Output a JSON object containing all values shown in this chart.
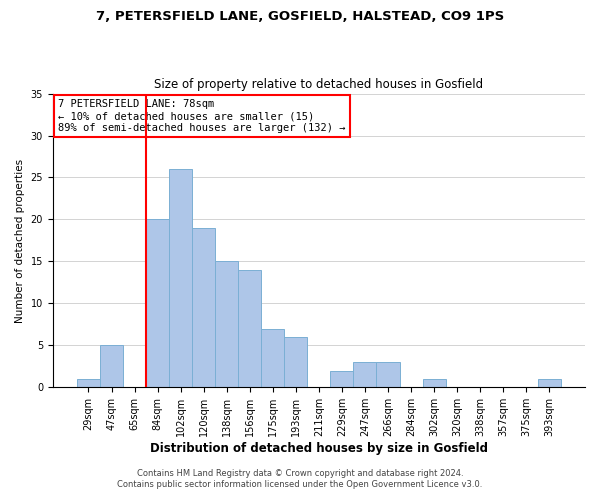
{
  "title1": "7, PETERSFIELD LANE, GOSFIELD, HALSTEAD, CO9 1PS",
  "title2": "Size of property relative to detached houses in Gosfield",
  "xlabel": "Distribution of detached houses by size in Gosfield",
  "ylabel": "Number of detached properties",
  "bar_labels": [
    "29sqm",
    "47sqm",
    "65sqm",
    "84sqm",
    "102sqm",
    "120sqm",
    "138sqm",
    "156sqm",
    "175sqm",
    "193sqm",
    "211sqm",
    "229sqm",
    "247sqm",
    "266sqm",
    "284sqm",
    "302sqm",
    "320sqm",
    "338sqm",
    "357sqm",
    "375sqm",
    "393sqm"
  ],
  "bar_values": [
    1,
    5,
    0,
    20,
    26,
    19,
    15,
    14,
    7,
    6,
    0,
    2,
    3,
    3,
    0,
    1,
    0,
    0,
    0,
    0,
    1
  ],
  "bar_color": "#aec6e8",
  "bar_edge_color": "#7bafd4",
  "vline_x": 2.5,
  "vline_color": "red",
  "ylim": [
    0,
    35
  ],
  "yticks": [
    0,
    5,
    10,
    15,
    20,
    25,
    30,
    35
  ],
  "annotation_title": "7 PETERSFIELD LANE: 78sqm",
  "annotation_line1": "← 10% of detached houses are smaller (15)",
  "annotation_line2": "89% of semi-detached houses are larger (132) →",
  "annotation_box_color": "#ffffff",
  "annotation_box_edge": "red",
  "footer1": "Contains HM Land Registry data © Crown copyright and database right 2024.",
  "footer2": "Contains public sector information licensed under the Open Government Licence v3.0.",
  "title1_fontsize": 9.5,
  "title2_fontsize": 8.5,
  "xlabel_fontsize": 8.5,
  "ylabel_fontsize": 7.5,
  "tick_fontsize": 7.0,
  "ann_fontsize": 7.5,
  "footer_fontsize": 6.0
}
